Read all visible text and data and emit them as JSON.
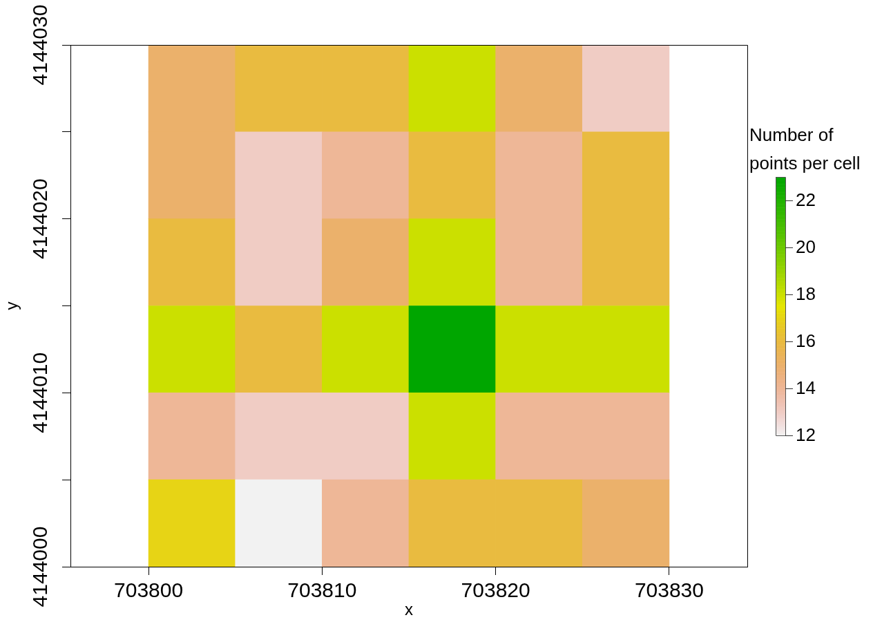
{
  "chart_data": {
    "type": "heatmap",
    "x": [
      703802.5,
      703807.5,
      703812.5,
      703817.5,
      703822.5,
      703827.5
    ],
    "cells": [
      [
        15,
        16,
        16,
        18,
        15,
        13
      ],
      [
        15,
        13,
        14,
        16,
        14,
        16
      ],
      [
        16,
        13,
        15,
        18,
        14,
        16
      ],
      [
        18,
        16,
        18,
        23,
        18,
        18
      ],
      [
        14,
        13,
        13,
        18,
        14,
        14
      ],
      [
        17,
        12,
        14,
        16,
        16,
        15
      ]
    ],
    "xlabel": "x",
    "ylabel": "y",
    "clabel": "Number of points per cell",
    "clim": [
      12,
      23
    ],
    "cticks": [
      12,
      14,
      16,
      18,
      20,
      22
    ],
    "xlim": [
      703795.5,
      703834.5
    ],
    "xticks": [
      703800,
      703810,
      703820,
      703830
    ],
    "ylim": [
      4144000,
      4144030
    ],
    "yticks": [
      4144000,
      {
        "value": 4144005,
        "label": null
      },
      4144010,
      {
        "value": 4144015,
        "label": null
      },
      4144020,
      {
        "value": 4144025,
        "label": null
      },
      4144030
    ]
  }
}
